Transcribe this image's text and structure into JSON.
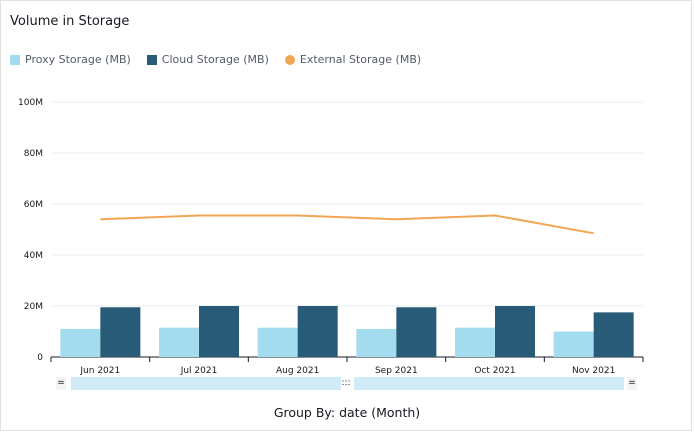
{
  "header": {
    "title": "Volume in Storage"
  },
  "legend": {
    "items": [
      {
        "label": "Proxy Storage (MB)",
        "color": "#a4dcef",
        "shape": "square"
      },
      {
        "label": "Cloud Storage (MB)",
        "color": "#275b77",
        "shape": "square"
      },
      {
        "label": "External Storage (MB)",
        "color": "#f2a654",
        "shape": "circle"
      }
    ]
  },
  "footer": {
    "group_by": "Group By: date (Month)"
  },
  "brush": {
    "left_handle": "=",
    "middle_handle": ":::",
    "right_handle": "="
  },
  "chart_data": {
    "type": "bar",
    "title": "Volume in Storage",
    "xlabel": "",
    "ylabel": "",
    "categories": [
      "Jun 2021",
      "Jul 2021",
      "Aug 2021",
      "Sep 2021",
      "Oct 2021",
      "Nov 2021"
    ],
    "ylim": [
      0,
      100000000
    ],
    "y_ticks": [
      0,
      20000000,
      40000000,
      60000000,
      80000000,
      100000000
    ],
    "y_tick_labels": [
      "0",
      "20M",
      "40M",
      "60M",
      "80M",
      "100M"
    ],
    "grid": true,
    "legend_position": "top-left",
    "series": [
      {
        "name": "Proxy Storage (MB)",
        "type": "bar",
        "color": "#a4dcef",
        "values": [
          11000000,
          11500000,
          11500000,
          11000000,
          11500000,
          10000000
        ]
      },
      {
        "name": "Cloud Storage (MB)",
        "type": "bar",
        "color": "#275b77",
        "values": [
          19500000,
          20000000,
          20000000,
          19500000,
          20000000,
          17500000
        ]
      },
      {
        "name": "External Storage (MB)",
        "type": "line",
        "color": "#f2a654",
        "values": [
          54000000,
          55500000,
          55500000,
          54000000,
          55500000,
          48500000
        ]
      }
    ]
  }
}
